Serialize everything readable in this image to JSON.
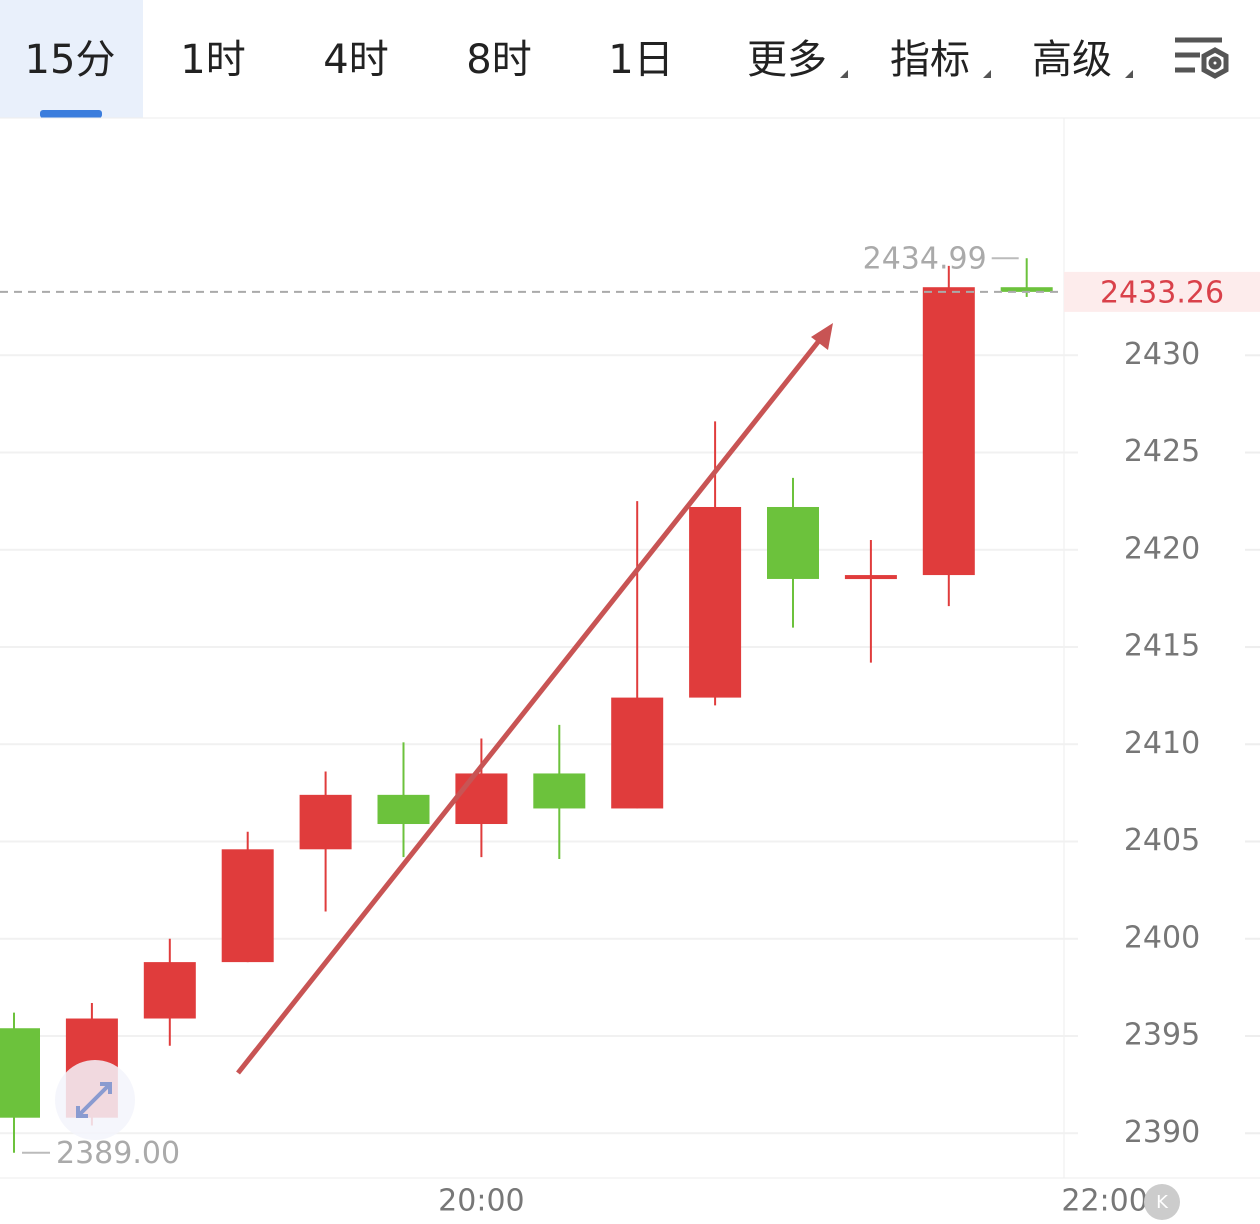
{
  "tabs": [
    "15分",
    "1时",
    "4时",
    "8时",
    "1日",
    "更多",
    "指标",
    "高级"
  ],
  "chart_data": {
    "type": "candlestick",
    "open": [
      2395.4,
      2390.8,
      2395.9,
      2398.8,
      2404.6,
      2407.4,
      2405.9,
      2408.5,
      2406.7,
      2412.4,
      2422.2,
      2418.5,
      2418.7,
      2433.5
    ],
    "high": [
      2396.2,
      2396.7,
      2400.0,
      2405.5,
      2408.6,
      2410.1,
      2410.3,
      2411.0,
      2422.5,
      2426.6,
      2423.7,
      2420.5,
      2434.6,
      2434.99
    ],
    "low": [
      2389.0,
      2390.4,
      2394.5,
      2398.8,
      2401.4,
      2404.2,
      2404.2,
      2404.1,
      2406.7,
      2412.0,
      2416.0,
      2414.2,
      2417.1,
      2433.0
    ],
    "close": [
      2390.8,
      2395.9,
      2398.8,
      2404.6,
      2407.4,
      2405.9,
      2408.5,
      2406.7,
      2412.4,
      2422.2,
      2418.5,
      2418.7,
      2433.5,
      2433.26
    ],
    "up_color": "#e03c3c",
    "down_color": "#6cc23c",
    "ylim": [
      2387.7,
      2442.2
    ],
    "yticks": [
      2390,
      2395,
      2400,
      2405,
      2410,
      2415,
      2420,
      2425,
      2430
    ],
    "xticks": [
      {
        "value": 6,
        "label": "20:00"
      },
      {
        "value": 14,
        "label": "22:00"
      }
    ],
    "high_marker": 2434.99,
    "low_marker": {
      "value": 2389,
      "label": "2389.00"
    },
    "last_price": 2433.26,
    "grid": true
  }
}
